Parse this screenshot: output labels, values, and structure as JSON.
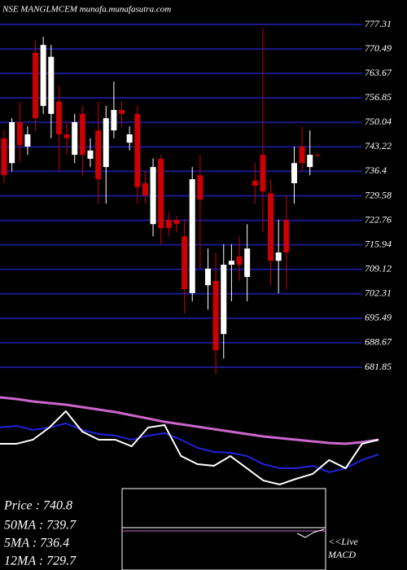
{
  "chart_data": [
    {
      "type": "candlestick",
      "title": "NSE MANGLMCEM munafa.munafasutra.com",
      "open": [
        745.6,
        738.7,
        750.1,
        743.3,
        769.4,
        754.6,
        752.4,
        755.8,
        746.7,
        741.0,
        752.4,
        739.9,
        747.8,
        737.6,
        747.8,
        753.5,
        744.4,
        752.4,
        733.1,
        721.7,
        739.9,
        722.9,
        722.9,
        718.3,
        702.5,
        735.3,
        704.7,
        705.9,
        691.1,
        710.4,
        712.7,
        707.0,
        733.8,
        741.0,
        730.3,
        711.5,
        722.9,
        733.1,
        743.3,
        737.6,
        741.0
      ],
      "high": [
        747.8,
        751.2,
        755.8,
        748.9,
        772.8,
        773.9,
        771.6,
        760.3,
        750.1,
        752.4,
        754.6,
        745.6,
        755.8,
        754.6,
        761.4,
        755.8,
        748.9,
        754.6,
        736.5,
        740.0,
        741.0,
        725.1,
        724.0,
        723.0,
        737.6,
        741.0,
        714.9,
        713.7,
        716.1,
        716.1,
        718.3,
        721.7,
        738.7,
        776.2,
        734.2,
        722.9,
        729.7,
        743.3,
        748.9,
        747.8,
        741.3
      ],
      "low": [
        733.1,
        736.4,
        738.7,
        741.0,
        747.8,
        752.4,
        745.6,
        736.5,
        741.0,
        738.7,
        735.3,
        737.6,
        727.4,
        727.4,
        745.6,
        748.9,
        742.2,
        727.4,
        727.4,
        718.3,
        716.1,
        718.3,
        719.5,
        696.8,
        700.2,
        709.3,
        697.9,
        679.8,
        684.3,
        700.2,
        706.0,
        700.2,
        727.4,
        719.5,
        704.7,
        702.5,
        703.6,
        727.4,
        736.5,
        735.3,
        740.4
      ],
      "close": [
        735.3,
        750.1,
        743.7,
        746.7,
        751.2,
        771.6,
        768.3,
        746.7,
        745.6,
        750.1,
        741.0,
        742.2,
        734.2,
        751.2,
        753.5,
        752.4,
        746.7,
        732.0,
        729.7,
        737.6,
        720.6,
        720.6,
        721.7,
        703.6,
        734.2,
        728.5,
        709.3,
        686.6,
        710.4,
        711.5,
        710.4,
        714.9,
        732.4,
        730.8,
        711.5,
        713.8,
        713.8,
        738.7,
        738.7,
        741.0,
        740.8
      ],
      "ylim": [
        681.85,
        777.31
      ],
      "yticks": [
        777.31,
        770.49,
        763.67,
        756.85,
        750.04,
        743.22,
        736.4,
        729.58,
        722.76,
        715.94,
        709.12,
        702.31,
        695.49,
        688.67,
        681.85
      ],
      "grid": true,
      "grid_color": "#1a1a8c",
      "up_color": "#ffffff",
      "down_color": "#cc0000"
    },
    {
      "type": "line",
      "ylim": [
        0,
        100
      ],
      "series": [
        {
          "color": "#cc66cc",
          "values": [
            93.3,
            91.7,
            89.2,
            87.5,
            85.8,
            83.3,
            80.8,
            78.3,
            75,
            71.7,
            68.3,
            65.8,
            63.3,
            60.8,
            58.3,
            55.8,
            53.3,
            51.7,
            50,
            48.3,
            46.7,
            45.8,
            47.5,
            50
          ]
        },
        {
          "color": "#2222dd",
          "values": [
            62.5,
            64.2,
            60,
            62.5,
            66.7,
            60,
            55.8,
            54.2,
            50,
            54.2,
            56.7,
            50,
            41.7,
            37.5,
            36.7,
            33.3,
            25,
            20.8,
            20.8,
            23.3,
            16.7,
            20.8,
            29.2,
            35
          ]
        },
        {
          "color": "#ffffff",
          "values": [
            45.8,
            45.8,
            50,
            62.5,
            79.2,
            58.3,
            50,
            50,
            43.3,
            62.5,
            65,
            33.3,
            25,
            23.3,
            33.3,
            20.8,
            8.3,
            4.2,
            10,
            15,
            29.2,
            20.8,
            45.8,
            50
          ]
        }
      ]
    }
  ],
  "info": [
    "Price  : 740.8",
    "50MA : 739.7",
    "5MA : 736.4",
    "12MA : 729.7"
  ],
  "macd_label": [
    "<<Live",
    "MACD"
  ]
}
